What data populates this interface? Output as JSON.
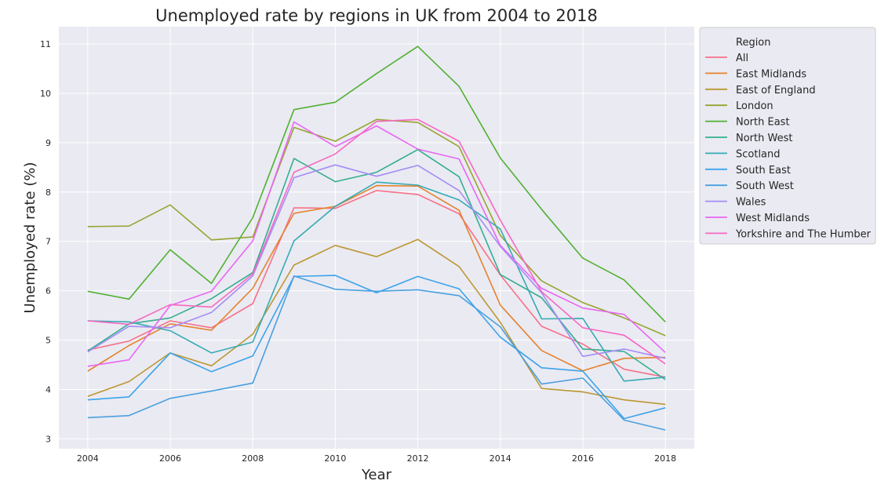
{
  "chart_data": {
    "type": "line",
    "title": "Unemployed rate by regions in UK from 2004 to 2018",
    "xlabel": "Year",
    "ylabel": "Unemployed rate (%)",
    "xlim": [
      2003.3,
      2018.7
    ],
    "ylim": [
      2.8,
      11.35
    ],
    "x_ticks": [
      2004,
      2006,
      2008,
      2010,
      2012,
      2014,
      2016,
      2018
    ],
    "y_ticks": [
      3,
      4,
      5,
      6,
      7,
      8,
      9,
      10,
      11
    ],
    "grid": true,
    "legend_position": "outside-right-top",
    "legend_title": "Region",
    "x": [
      2004,
      2005,
      2006,
      2007,
      2008,
      2009,
      2010,
      2011,
      2012,
      2013,
      2014,
      2015,
      2016,
      2017,
      2018
    ],
    "series": [
      {
        "name": "All",
        "color": "#f77189",
        "values": [
          4.8,
          4.98,
          5.39,
          5.25,
          5.74,
          7.68,
          7.67,
          8.03,
          7.95,
          7.56,
          6.32,
          5.28,
          4.92,
          4.41,
          4.25
        ]
      },
      {
        "name": "East Midlands",
        "color": "#e5822e",
        "values": [
          4.37,
          4.89,
          5.33,
          5.2,
          6.05,
          7.57,
          7.71,
          8.13,
          8.12,
          7.63,
          5.71,
          4.79,
          4.38,
          4.63,
          4.65
        ]
      },
      {
        "name": "East of England",
        "color": "#bb9832",
        "values": [
          3.86,
          4.16,
          4.74,
          4.48,
          5.12,
          6.52,
          6.92,
          6.69,
          7.04,
          6.49,
          5.36,
          4.02,
          3.95,
          3.79,
          3.7
        ]
      },
      {
        "name": "London",
        "color": "#97a431",
        "values": [
          7.3,
          7.31,
          7.74,
          7.03,
          7.09,
          9.31,
          9.03,
          9.47,
          9.41,
          8.92,
          7.12,
          6.2,
          5.76,
          5.45,
          5.09
        ]
      },
      {
        "name": "North East",
        "color": "#50b131",
        "values": [
          5.99,
          5.83,
          6.83,
          6.15,
          7.48,
          9.67,
          9.82,
          10.4,
          10.95,
          10.14,
          8.69,
          7.65,
          6.66,
          6.22,
          5.37
        ]
      },
      {
        "name": "North West",
        "color": "#34ae91",
        "values": [
          4.78,
          5.33,
          5.45,
          5.84,
          6.37,
          8.68,
          8.21,
          8.4,
          8.86,
          8.31,
          6.33,
          5.86,
          4.82,
          4.77,
          4.2
        ]
      },
      {
        "name": "Scotland",
        "color": "#37abb4",
        "values": [
          5.39,
          5.37,
          5.19,
          4.74,
          4.96,
          7.01,
          7.71,
          8.2,
          8.14,
          7.84,
          7.25,
          5.43,
          5.44,
          4.17,
          4.25
        ]
      },
      {
        "name": "South East",
        "color": "#3ba3ec",
        "values": [
          3.79,
          3.85,
          4.74,
          4.36,
          4.68,
          6.29,
          6.31,
          5.96,
          6.29,
          6.04,
          5.06,
          4.44,
          4.37,
          3.41,
          3.63
        ]
      },
      {
        "name": "South West",
        "color": "#49a0e0",
        "values": [
          3.43,
          3.47,
          3.82,
          3.97,
          4.13,
          6.3,
          6.03,
          5.99,
          6.02,
          5.9,
          5.27,
          4.11,
          4.23,
          3.38,
          3.18
        ]
      },
      {
        "name": "Wales",
        "color": "#a48cf4",
        "values": [
          4.76,
          5.28,
          5.25,
          5.56,
          6.3,
          8.29,
          8.55,
          8.32,
          8.54,
          8.03,
          6.9,
          5.96,
          4.67,
          4.82,
          4.63
        ]
      },
      {
        "name": "West Midlands",
        "color": "#e866f4",
        "values": [
          4.47,
          4.6,
          5.7,
          5.99,
          7.01,
          9.42,
          8.92,
          9.34,
          8.87,
          8.67,
          6.92,
          6.05,
          5.65,
          5.52,
          4.75
        ]
      },
      {
        "name": "Yorkshire and The Humber",
        "color": "#f668c2",
        "values": [
          5.39,
          5.32,
          5.72,
          5.67,
          6.34,
          8.4,
          8.77,
          9.43,
          9.47,
          9.03,
          7.43,
          5.98,
          5.25,
          5.1,
          4.52
        ]
      }
    ]
  }
}
